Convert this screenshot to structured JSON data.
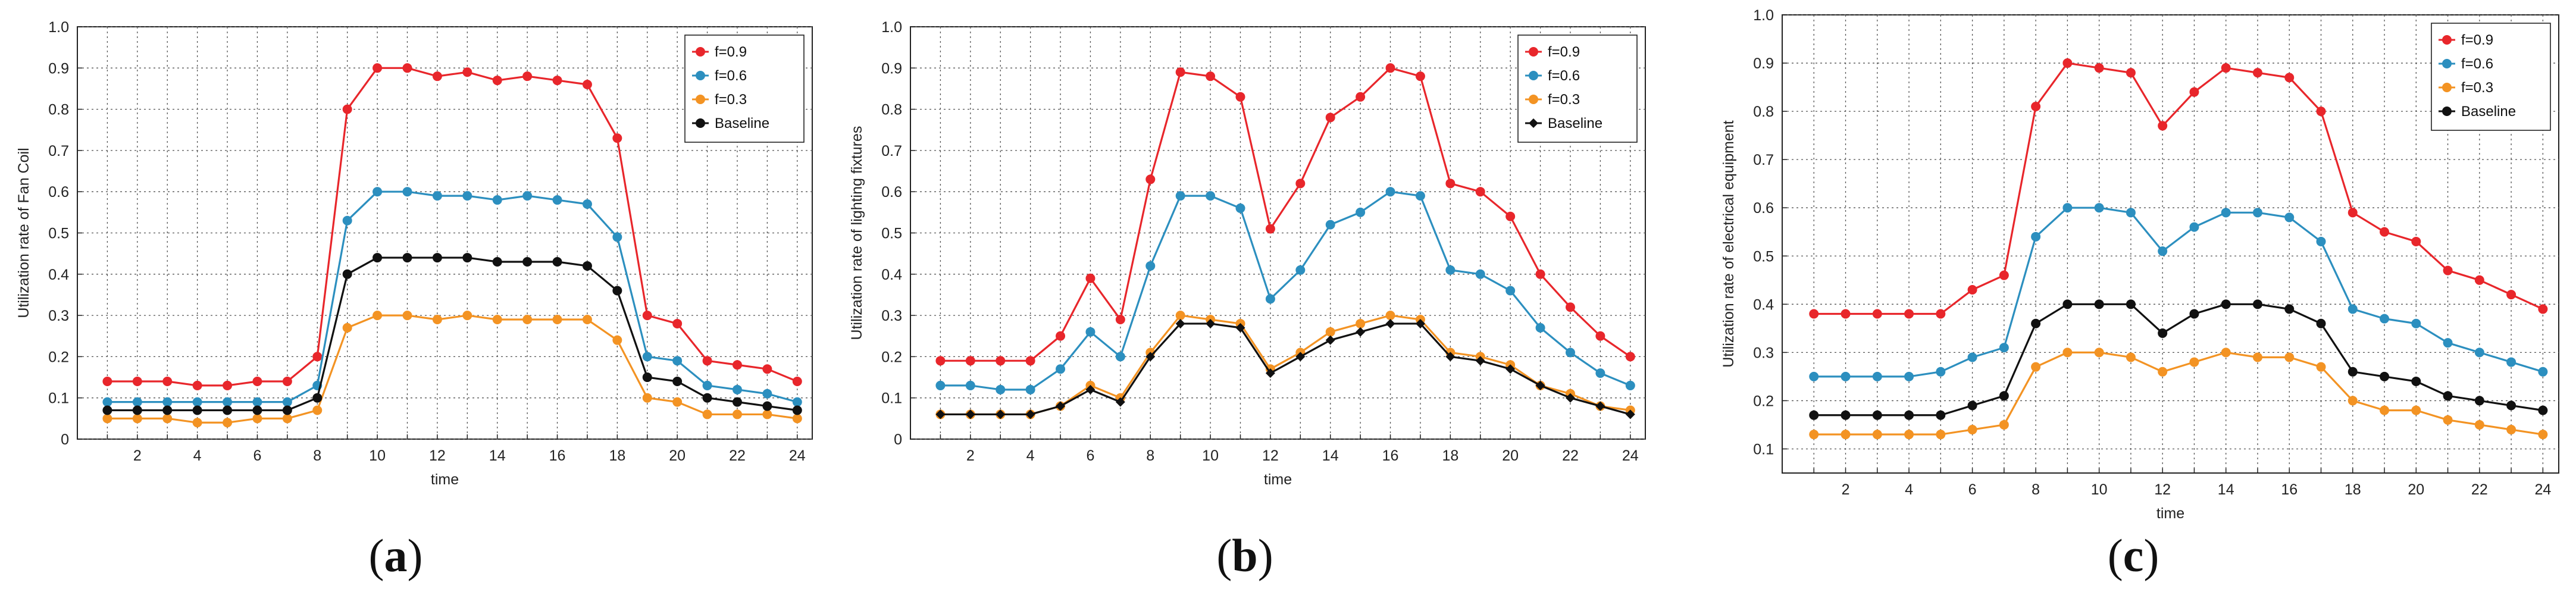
{
  "chart_data": [
    {
      "type": "line",
      "panel": "(a)",
      "panel_letter": "a",
      "xlabel": "time",
      "ylabel": "Utilization rate of Fan Coil",
      "xlim": [
        0,
        24.5
      ],
      "ylim": [
        0,
        1.0
      ],
      "xticks": [
        2,
        4,
        6,
        8,
        10,
        12,
        14,
        16,
        18,
        20,
        22,
        24
      ],
      "yticks": [
        0,
        0.1,
        0.2,
        0.3,
        0.4,
        0.5,
        0.6,
        0.7,
        0.8,
        0.9,
        1.0
      ],
      "ytick_labels": [
        "0",
        "0.1",
        "0.2",
        "0.3",
        "0.4",
        "0.5",
        "0.6",
        "0.7",
        "0.8",
        "0.9",
        "1.0"
      ],
      "grid": true,
      "legend": "top-right",
      "x": [
        1,
        2,
        3,
        4,
        5,
        6,
        7,
        8,
        9,
        10,
        11,
        12,
        13,
        14,
        15,
        16,
        17,
        18,
        19,
        20,
        21,
        22,
        23,
        24
      ],
      "series": [
        {
          "name": "f=0.9",
          "color": "#e8262b",
          "marker": "circle",
          "values": [
            0.14,
            0.14,
            0.14,
            0.13,
            0.13,
            0.14,
            0.14,
            0.2,
            0.8,
            0.9,
            0.9,
            0.88,
            0.89,
            0.87,
            0.88,
            0.87,
            0.86,
            0.73,
            0.3,
            0.28,
            0.19,
            0.18,
            0.17,
            0.14
          ]
        },
        {
          "name": "f=0.6",
          "color": "#2c8fbf",
          "marker": "circle",
          "values": [
            0.09,
            0.09,
            0.09,
            0.09,
            0.09,
            0.09,
            0.09,
            0.13,
            0.53,
            0.6,
            0.6,
            0.59,
            0.59,
            0.58,
            0.59,
            0.58,
            0.57,
            0.49,
            0.2,
            0.19,
            0.13,
            0.12,
            0.11,
            0.09
          ]
        },
        {
          "name": "f=0.3",
          "color": "#f39323",
          "marker": "circle",
          "values": [
            0.05,
            0.05,
            0.05,
            0.04,
            0.04,
            0.05,
            0.05,
            0.07,
            0.27,
            0.3,
            0.3,
            0.29,
            0.3,
            0.29,
            0.29,
            0.29,
            0.29,
            0.24,
            0.1,
            0.09,
            0.06,
            0.06,
            0.06,
            0.05
          ]
        },
        {
          "name": "Baseline",
          "color": "#111111",
          "marker": "circle",
          "values": [
            0.07,
            0.07,
            0.07,
            0.07,
            0.07,
            0.07,
            0.07,
            0.1,
            0.4,
            0.44,
            0.44,
            0.44,
            0.44,
            0.43,
            0.43,
            0.43,
            0.42,
            0.36,
            0.15,
            0.14,
            0.1,
            0.09,
            0.08,
            0.07
          ]
        }
      ]
    },
    {
      "type": "line",
      "panel": "(b)",
      "panel_letter": "b",
      "xlabel": "time",
      "ylabel": "Utilization rate of lighting fixtures",
      "xlim": [
        0,
        24.5
      ],
      "ylim": [
        0,
        1.0
      ],
      "xticks": [
        2,
        4,
        6,
        8,
        10,
        12,
        14,
        16,
        18,
        20,
        22,
        24
      ],
      "yticks": [
        0,
        0.1,
        0.2,
        0.3,
        0.4,
        0.5,
        0.6,
        0.7,
        0.8,
        0.9,
        1.0
      ],
      "ytick_labels": [
        "0",
        "0.1",
        "0.2",
        "0.3",
        "0.4",
        "0.5",
        "0.6",
        "0.7",
        "0.8",
        "0.9",
        "1.0"
      ],
      "grid": true,
      "legend": "top-right",
      "x": [
        1,
        2,
        3,
        4,
        5,
        6,
        7,
        8,
        9,
        10,
        11,
        12,
        13,
        14,
        15,
        16,
        17,
        18,
        19,
        20,
        21,
        22,
        23,
        24
      ],
      "series": [
        {
          "name": "f=0.9",
          "color": "#e8262b",
          "marker": "circle",
          "values": [
            0.19,
            0.19,
            0.19,
            0.19,
            0.25,
            0.39,
            0.29,
            0.63,
            0.89,
            0.88,
            0.83,
            0.51,
            0.62,
            0.78,
            0.83,
            0.9,
            0.88,
            0.62,
            0.6,
            0.54,
            0.4,
            0.32,
            0.25,
            0.2
          ]
        },
        {
          "name": "f=0.6",
          "color": "#2c8fbf",
          "marker": "circle",
          "values": [
            0.13,
            0.13,
            0.12,
            0.12,
            0.17,
            0.26,
            0.2,
            0.42,
            0.59,
            0.59,
            0.56,
            0.34,
            0.41,
            0.52,
            0.55,
            0.6,
            0.59,
            0.41,
            0.4,
            0.36,
            0.27,
            0.21,
            0.16,
            0.13
          ]
        },
        {
          "name": "f=0.3",
          "color": "#f39323",
          "marker": "circle",
          "values": [
            0.06,
            0.06,
            0.06,
            0.06,
            0.08,
            0.13,
            0.1,
            0.21,
            0.3,
            0.29,
            0.28,
            0.17,
            0.21,
            0.26,
            0.28,
            0.3,
            0.29,
            0.21,
            0.2,
            0.18,
            0.13,
            0.11,
            0.08,
            0.07
          ]
        },
        {
          "name": "Baseline",
          "color": "#111111",
          "marker": "diamond",
          "values": [
            0.06,
            0.06,
            0.06,
            0.06,
            0.08,
            0.12,
            0.09,
            0.2,
            0.28,
            0.28,
            0.27,
            0.16,
            0.2,
            0.24,
            0.26,
            0.28,
            0.28,
            0.2,
            0.19,
            0.17,
            0.13,
            0.1,
            0.08,
            0.06
          ]
        }
      ]
    },
    {
      "type": "line",
      "panel": "(c)",
      "panel_letter": "c",
      "xlabel": "time",
      "ylabel": "Utilization rate of  electrical equipment",
      "xlim": [
        0,
        24.5
      ],
      "ylim": [
        0.05,
        1.0
      ],
      "xticks": [
        2,
        4,
        6,
        8,
        10,
        12,
        14,
        16,
        18,
        20,
        22,
        24
      ],
      "yticks": [
        0.1,
        0.2,
        0.3,
        0.4,
        0.5,
        0.6,
        0.7,
        0.8,
        0.9,
        1.0
      ],
      "ytick_labels": [
        "0.1",
        "0.2",
        "0.3",
        "0.4",
        "0.5",
        "0.6",
        "0.7",
        "0.8",
        "0.9",
        "1.0"
      ],
      "grid": true,
      "legend": "top-right",
      "x": [
        1,
        2,
        3,
        4,
        5,
        6,
        7,
        8,
        9,
        10,
        11,
        12,
        13,
        14,
        15,
        16,
        17,
        18,
        19,
        20,
        21,
        22,
        23,
        24
      ],
      "series": [
        {
          "name": "f=0.9",
          "color": "#e8262b",
          "marker": "circle",
          "values": [
            0.38,
            0.38,
            0.38,
            0.38,
            0.38,
            0.43,
            0.46,
            0.81,
            0.9,
            0.89,
            0.88,
            0.77,
            0.84,
            0.89,
            0.88,
            0.87,
            0.8,
            0.59,
            0.55,
            0.53,
            0.47,
            0.45,
            0.42,
            0.39
          ]
        },
        {
          "name": "f=0.6",
          "color": "#2c8fbf",
          "marker": "circle",
          "values": [
            0.25,
            0.25,
            0.25,
            0.25,
            0.26,
            0.29,
            0.31,
            0.54,
            0.6,
            0.6,
            0.59,
            0.51,
            0.56,
            0.59,
            0.59,
            0.58,
            0.53,
            0.39,
            0.37,
            0.36,
            0.32,
            0.3,
            0.28,
            0.26
          ]
        },
        {
          "name": "f=0.3",
          "color": "#f39323",
          "marker": "circle",
          "values": [
            0.13,
            0.13,
            0.13,
            0.13,
            0.13,
            0.14,
            0.15,
            0.27,
            0.3,
            0.3,
            0.29,
            0.26,
            0.28,
            0.3,
            0.29,
            0.29,
            0.27,
            0.2,
            0.18,
            0.18,
            0.16,
            0.15,
            0.14,
            0.13
          ]
        },
        {
          "name": "Baseline",
          "color": "#111111",
          "marker": "circle",
          "values": [
            0.17,
            0.17,
            0.17,
            0.17,
            0.17,
            0.19,
            0.21,
            0.36,
            0.4,
            0.4,
            0.4,
            0.34,
            0.38,
            0.4,
            0.4,
            0.39,
            0.36,
            0.26,
            0.25,
            0.24,
            0.21,
            0.2,
            0.19,
            0.18
          ]
        }
      ]
    }
  ]
}
